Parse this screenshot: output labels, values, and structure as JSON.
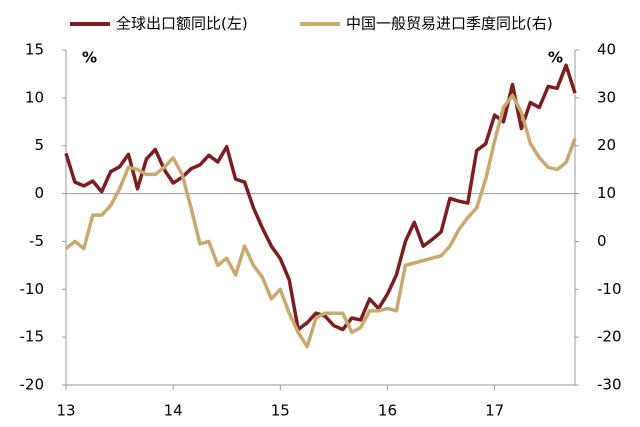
{
  "chart_data": {
    "type": "line",
    "annotations": [
      "%",
      "%"
    ],
    "x": [
      13,
      13.083,
      13.167,
      13.25,
      13.333,
      13.417,
      13.5,
      13.583,
      13.667,
      13.75,
      13.833,
      13.917,
      14,
      14.083,
      14.167,
      14.25,
      14.333,
      14.417,
      14.5,
      14.583,
      14.667,
      14.75,
      14.833,
      14.917,
      15,
      15.083,
      15.167,
      15.25,
      15.333,
      15.417,
      15.5,
      15.583,
      15.667,
      15.75,
      15.833,
      15.917,
      16,
      16.083,
      16.167,
      16.25,
      16.333,
      16.417,
      16.5,
      16.583,
      16.667,
      16.75,
      16.833,
      16.917,
      17,
      17.083,
      17.167,
      17.25,
      17.333,
      17.417,
      17.5,
      17.583,
      17.667,
      17.75
    ],
    "xlim": [
      13,
      17.75
    ],
    "xticks": [
      13,
      14,
      15,
      16,
      17
    ],
    "ylim": [
      -20,
      15
    ],
    "yticks": [
      -20,
      -15,
      -10,
      -5,
      0,
      5,
      10,
      15
    ],
    "y2lim": [
      -30,
      40
    ],
    "y2ticks": [
      -30,
      -20,
      -10,
      0,
      10,
      20,
      30,
      40
    ],
    "series": [
      {
        "name": "全球出口额同比(左)",
        "color": "#7b1e1e",
        "values": [
          4.2,
          1.2,
          0.8,
          1.3,
          0.2,
          2.3,
          2.8,
          4.1,
          0.5,
          3.6,
          4.6,
          2.5,
          1.1,
          1.7,
          2.6,
          3.0,
          4.0,
          3.3,
          4.9,
          1.5,
          1.2,
          -1.5,
          -3.6,
          -5.5,
          -6.8,
          -9,
          -14.2,
          -13.5,
          -12.5,
          -12.8,
          -13.8,
          -14.2,
          -13.0,
          -13.2,
          -11.0,
          -12.0,
          -10.5,
          -8.5,
          -5,
          -3,
          -5.5,
          -4.8,
          -4,
          -0.5,
          -0.8,
          -1,
          4.5,
          5.2,
          8.2,
          7.5,
          11.4,
          6.8,
          9.5,
          9,
          11.2,
          11,
          13.4,
          10.5
        ]
      },
      {
        "name": "中国一般贸易进口季度同比(右)",
        "color": "#c9a96e",
        "axis": "y2",
        "values": [
          -1.5,
          0,
          -1.5,
          5.5,
          5.5,
          7.5,
          11,
          15.5,
          15,
          14,
          14,
          15.5,
          17.5,
          14,
          7,
          -0.5,
          0,
          -5,
          -3.5,
          -7,
          -1,
          -5,
          -7.5,
          -12,
          -10,
          -15,
          -19,
          -22,
          -16,
          -15,
          -15,
          -15,
          -19,
          -18,
          -14.5,
          -14.5,
          -14,
          -14.5,
          -5,
          -4.5,
          -4,
          -3.5,
          -3,
          -1,
          2.5,
          5,
          7,
          13,
          21,
          28,
          30.5,
          27,
          20.5,
          17.5,
          15.5,
          15,
          16.5,
          21.5
        ]
      }
    ]
  }
}
